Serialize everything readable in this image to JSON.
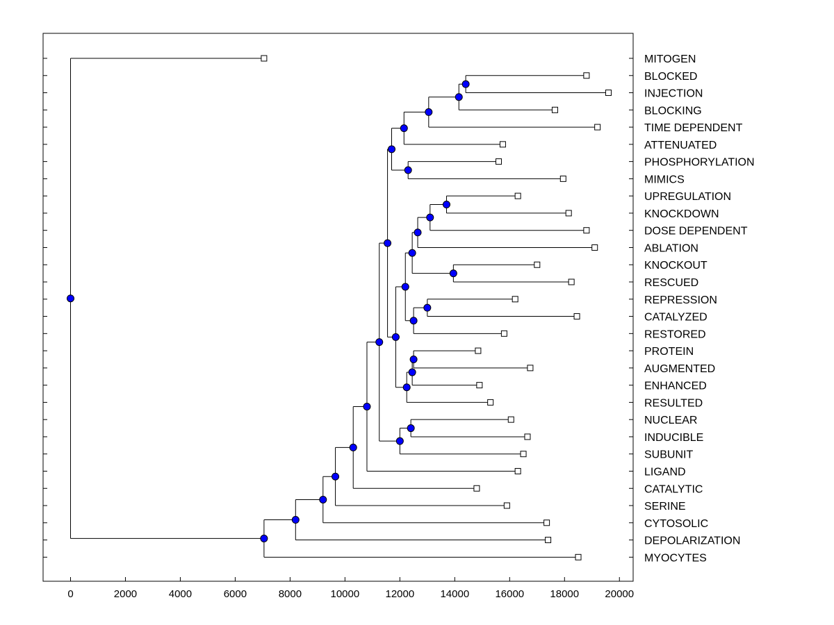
{
  "chart_data": {
    "type": "dendrogram",
    "title": "",
    "xlabel": "",
    "ylabel": "",
    "xlim": [
      -1000,
      20500
    ],
    "x_ticks": [
      0,
      2000,
      4000,
      6000,
      8000,
      10000,
      12000,
      14000,
      16000,
      18000,
      20000
    ],
    "grid": false,
    "colors": {
      "node_fill": "#0000ff",
      "leaf_fill": "#ffffff",
      "line": "#000000"
    },
    "leaves": [
      {
        "id": "L1",
        "label": "MITOGEN",
        "x": 7050
      },
      {
        "id": "L2",
        "label": "BLOCKED",
        "x": 18800
      },
      {
        "id": "L3",
        "label": "INJECTION",
        "x": 19600
      },
      {
        "id": "L4",
        "label": "BLOCKING",
        "x": 17650
      },
      {
        "id": "L5",
        "label": "TIME DEPENDENT",
        "x": 19200
      },
      {
        "id": "L6",
        "label": "ATTENUATED",
        "x": 15750
      },
      {
        "id": "L7",
        "label": "PHOSPHORYLATION",
        "x": 15600
      },
      {
        "id": "L8",
        "label": "MIMICS",
        "x": 17950
      },
      {
        "id": "L9",
        "label": "UPREGULATION",
        "x": 16300
      },
      {
        "id": "L10",
        "label": "KNOCKDOWN",
        "x": 18150
      },
      {
        "id": "L11",
        "label": "DOSE DEPENDENT",
        "x": 18800
      },
      {
        "id": "L12",
        "label": "ABLATION",
        "x": 19100
      },
      {
        "id": "L13",
        "label": "KNOCKOUT",
        "x": 17000
      },
      {
        "id": "L14",
        "label": "RESCUED",
        "x": 18250
      },
      {
        "id": "L15",
        "label": "REPRESSION",
        "x": 16200
      },
      {
        "id": "L16",
        "label": "CATALYZED",
        "x": 18450
      },
      {
        "id": "L17",
        "label": "RESTORED",
        "x": 15800
      },
      {
        "id": "L18",
        "label": "PROTEIN",
        "x": 14850
      },
      {
        "id": "L19",
        "label": "AUGMENTED",
        "x": 16750
      },
      {
        "id": "L20",
        "label": "ENHANCED",
        "x": 14900
      },
      {
        "id": "L21",
        "label": "RESULTED",
        "x": 15300
      },
      {
        "id": "L22",
        "label": "NUCLEAR",
        "x": 16050
      },
      {
        "id": "L23",
        "label": "INDUCIBLE",
        "x": 16650
      },
      {
        "id": "L24",
        "label": "SUBUNIT",
        "x": 16500
      },
      {
        "id": "L25",
        "label": "LIGAND",
        "x": 16300
      },
      {
        "id": "L26",
        "label": "CATALYTIC",
        "x": 14800
      },
      {
        "id": "L27",
        "label": "SERINE",
        "x": 15900
      },
      {
        "id": "L28",
        "label": "CYTOSOLIC",
        "x": 17350
      },
      {
        "id": "L29",
        "label": "DEPOLARIZATION",
        "x": 17400
      },
      {
        "id": "L30",
        "label": "MYOCYTES",
        "x": 18500
      }
    ],
    "nodes": [
      {
        "id": "N1",
        "x": 14400,
        "children": [
          "L2",
          "L3"
        ]
      },
      {
        "id": "N2",
        "x": 14150,
        "children": [
          "N1",
          "L4"
        ]
      },
      {
        "id": "N3",
        "x": 13050,
        "children": [
          "N2",
          "L5"
        ]
      },
      {
        "id": "N4",
        "x": 12150,
        "children": [
          "N3",
          "L6"
        ]
      },
      {
        "id": "N5",
        "x": 12300,
        "children": [
          "L7",
          "L8"
        ]
      },
      {
        "id": "N6",
        "x": 11700,
        "children": [
          "N4",
          "N5"
        ]
      },
      {
        "id": "N7",
        "x": 13700,
        "children": [
          "L9",
          "L10"
        ]
      },
      {
        "id": "N8",
        "x": 13100,
        "children": [
          "N7",
          "L11"
        ]
      },
      {
        "id": "N9",
        "x": 12650,
        "children": [
          "N8",
          "L12"
        ]
      },
      {
        "id": "N10",
        "x": 13950,
        "children": [
          "L13",
          "L14"
        ]
      },
      {
        "id": "N11",
        "x": 12450,
        "children": [
          "N9",
          "N10"
        ]
      },
      {
        "id": "N12",
        "x": 13000,
        "children": [
          "L15",
          "L16"
        ]
      },
      {
        "id": "N13",
        "x": 12500,
        "children": [
          "N12",
          "L17"
        ]
      },
      {
        "id": "N14",
        "x": 12200,
        "children": [
          "N11",
          "N13"
        ]
      },
      {
        "id": "N15",
        "x": 12500,
        "children": [
          "L18",
          "L19"
        ]
      },
      {
        "id": "N16",
        "x": 12450,
        "children": [
          "N15",
          "L20"
        ]
      },
      {
        "id": "N17",
        "x": 12250,
        "children": [
          "N16",
          "L21"
        ]
      },
      {
        "id": "N18",
        "x": 11850,
        "children": [
          "N14",
          "N17"
        ]
      },
      {
        "id": "N19",
        "x": 11550,
        "children": [
          "N6",
          "N18"
        ]
      },
      {
        "id": "N20",
        "x": 12400,
        "children": [
          "L22",
          "L23"
        ]
      },
      {
        "id": "N21",
        "x": 12000,
        "children": [
          "N20",
          "L24"
        ]
      },
      {
        "id": "N22",
        "x": 11250,
        "children": [
          "N19",
          "N21"
        ]
      },
      {
        "id": "N23",
        "x": 10800,
        "children": [
          "N22",
          "L25"
        ]
      },
      {
        "id": "N24",
        "x": 10300,
        "children": [
          "N23",
          "L26"
        ]
      },
      {
        "id": "N25",
        "x": 9650,
        "children": [
          "N24",
          "L27"
        ]
      },
      {
        "id": "N26",
        "x": 9200,
        "children": [
          "N25",
          "L28"
        ]
      },
      {
        "id": "N27",
        "x": 8200,
        "children": [
          "N26",
          "L29"
        ]
      },
      {
        "id": "N28",
        "x": 7050,
        "children": [
          "N27",
          "L30"
        ]
      },
      {
        "id": "N29",
        "x": 0,
        "children": [
          "L1",
          "N28"
        ]
      }
    ]
  }
}
